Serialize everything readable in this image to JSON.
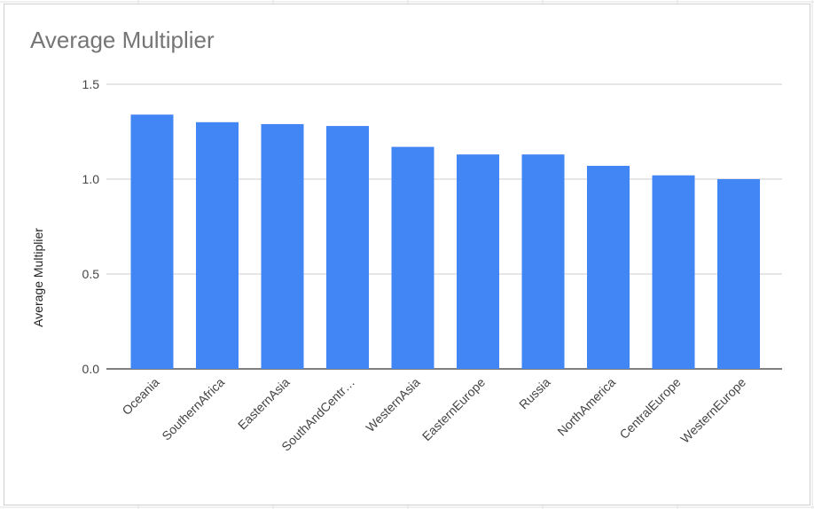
{
  "chart_data": {
    "type": "bar",
    "title": "Average Multiplier",
    "xlabel": "",
    "ylabel": "Average Multiplier",
    "categories": [
      "Oceania",
      "SouthernAfrica",
      "EasternAsia",
      "SouthAndCentr…",
      "WesternAsia",
      "EasternEurope",
      "Russia",
      "NorthAmerica",
      "CentralEurope",
      "WesternEurope"
    ],
    "values": [
      1.34,
      1.3,
      1.29,
      1.28,
      1.17,
      1.13,
      1.13,
      1.07,
      1.02,
      1.0
    ],
    "ylim": [
      0,
      1.5
    ],
    "yticks": [
      "0.0",
      "0.5",
      "1.0",
      "1.5"
    ],
    "grid": true,
    "legend": "none",
    "bar_color": "#4285f4"
  }
}
